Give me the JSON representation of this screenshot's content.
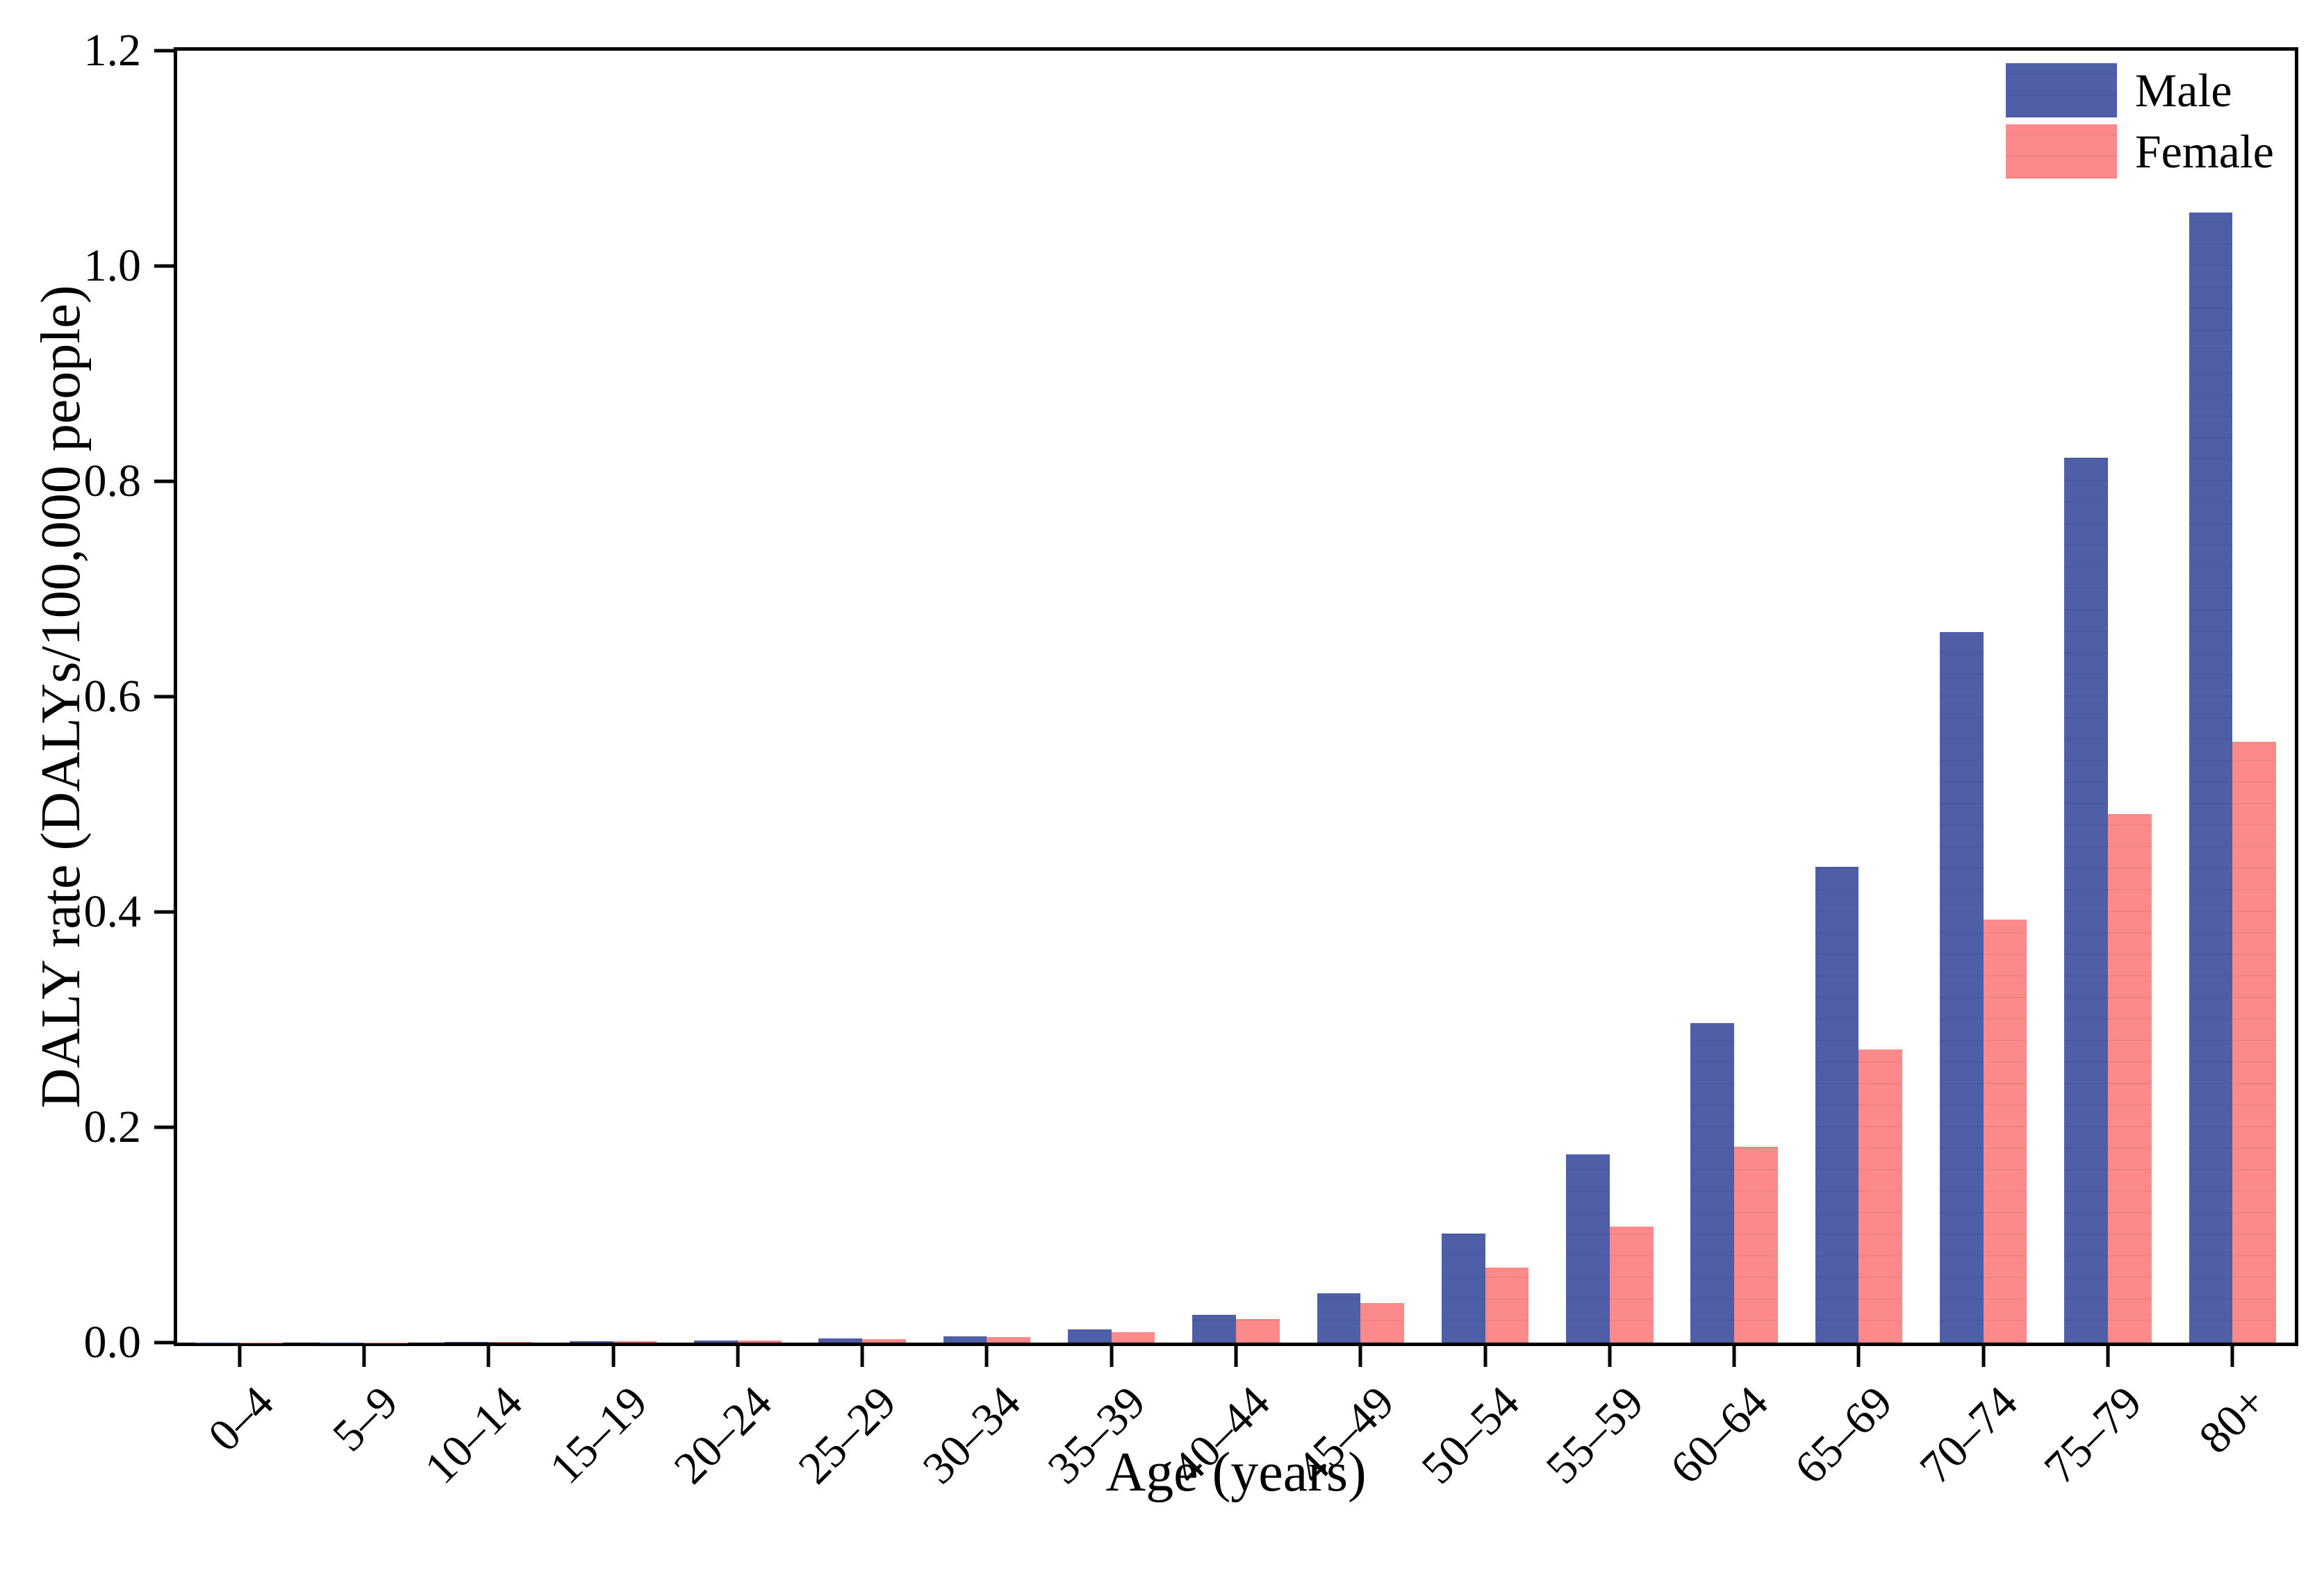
{
  "figure": {
    "background": "#ffffff",
    "frame_color": "#000000"
  },
  "legend": {
    "position": "upper-right",
    "items": [
      {
        "label": "Male",
        "color": "#4E5FA8"
      },
      {
        "label": "Female",
        "color": "#FC8A8A"
      }
    ]
  },
  "chart_data": {
    "type": "bar",
    "title": "",
    "xlabel": "Age (years)",
    "ylabel": "DALY rate (DALYs/100,000 people)",
    "categories": [
      "0–4",
      "5–9",
      "10–14",
      "15–19",
      "20–24",
      "25–29",
      "30–34",
      "35–39",
      "40–44",
      "45–49",
      "50–54",
      "55–59",
      "60–64",
      "65–69",
      "70–74",
      "75–79",
      "80+"
    ],
    "series": [
      {
        "name": "Male",
        "color": "#4E5FA8",
        "values": [
          0.0002,
          0.0003,
          0.0005,
          0.001,
          0.002,
          0.004,
          0.006,
          0.012,
          0.026,
          0.046,
          0.101,
          0.175,
          0.297,
          0.442,
          0.66,
          0.822,
          1.05
        ]
      },
      {
        "name": "Female",
        "color": "#FC8A8A",
        "values": [
          0.0002,
          0.0003,
          0.0005,
          0.001,
          0.002,
          0.003,
          0.005,
          0.01,
          0.022,
          0.037,
          0.07,
          0.108,
          0.182,
          0.272,
          0.393,
          0.491,
          0.558
        ]
      }
    ],
    "ylim": [
      0,
      1.2
    ],
    "yticks": [
      "0.0",
      "0.2",
      "0.4",
      "0.6",
      "0.8",
      "1.0",
      "1.2"
    ],
    "grid": false,
    "legend_position": "upper right",
    "x_tick_rotation_deg": 45
  }
}
